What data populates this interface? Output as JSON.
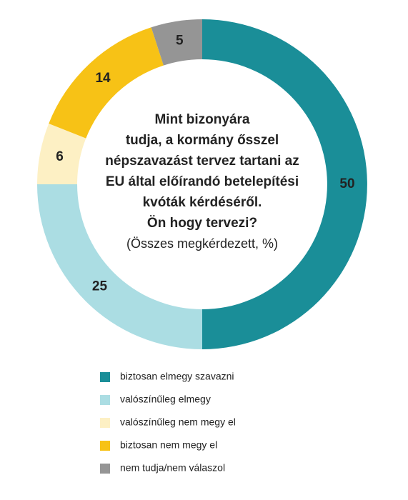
{
  "chart_data": {
    "type": "donut",
    "title": [
      "Mint bizonyára",
      "tudja, a kormány ősszel",
      "népszavazást tervez tartani az",
      "EU által előírandó betelepítési",
      "kvóták kérdéséről.",
      "Ön hogy tervezi?"
    ],
    "subtitle": "(Összes megkérdezett, %)",
    "categories": [
      "biztosan elmegy szavazni",
      "valószínűleg elmegy",
      "valószínűleg nem megy el",
      "biztosan nem megy el",
      "nem tudja/nem válaszol"
    ],
    "values": [
      50,
      25,
      6,
      14,
      5
    ],
    "colors": [
      "#1a8e98",
      "#abdde3",
      "#fdf0c4",
      "#f7c216",
      "#959595"
    ]
  }
}
